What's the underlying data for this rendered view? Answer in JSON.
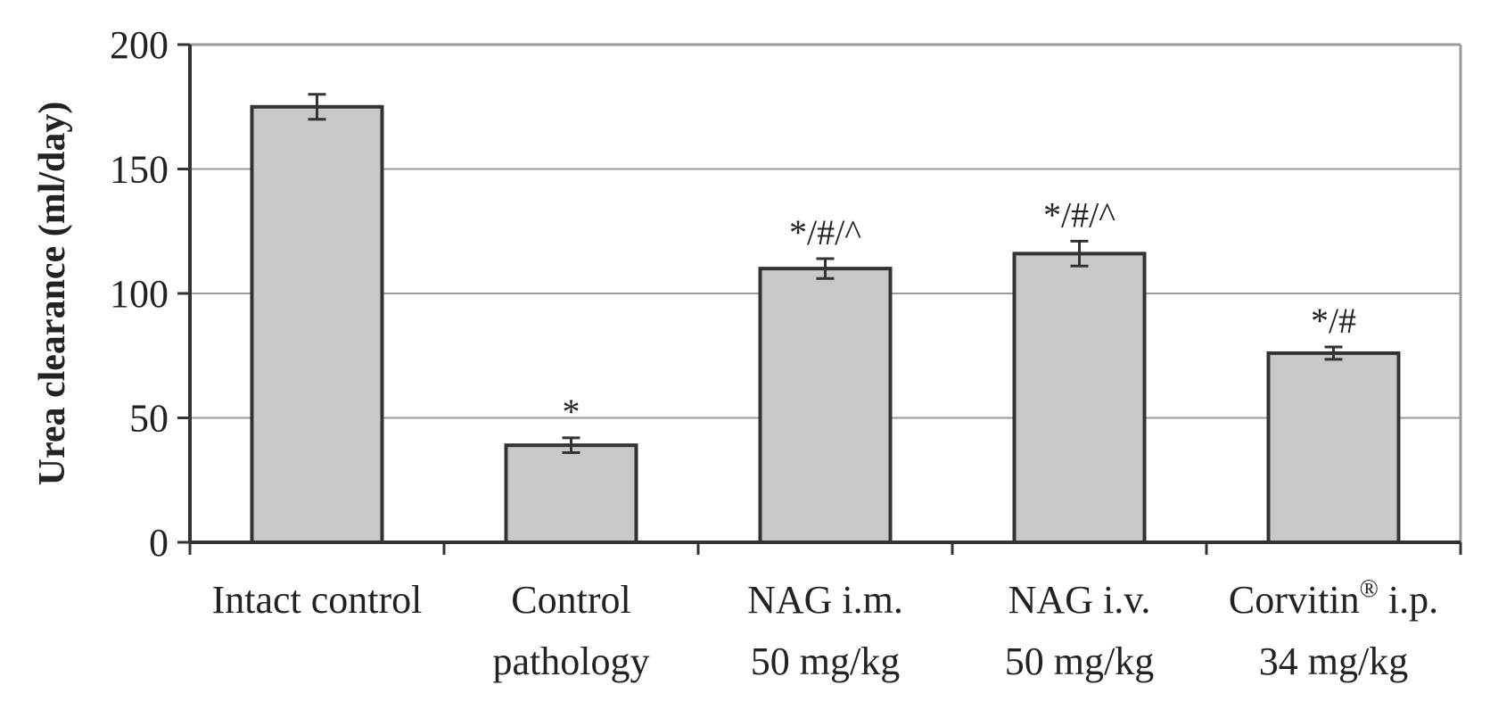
{
  "chart_data": {
    "type": "bar",
    "ylabel": "Urea clearance (ml/day)",
    "ylim": [
      0,
      200
    ],
    "yticks": [
      "0",
      "50",
      "100",
      "150",
      "200"
    ],
    "grid": true,
    "categories": [
      {
        "lines": [
          "Intact control"
        ],
        "sup": "",
        "line1_suffix": ""
      },
      {
        "lines": [
          "Control",
          "pathology"
        ],
        "sup": "",
        "line1_suffix": ""
      },
      {
        "lines": [
          "NAG i.m.",
          "50 mg/kg"
        ],
        "sup": "",
        "line1_suffix": ""
      },
      {
        "lines": [
          "NAG i.v.",
          "50 mg/kg"
        ],
        "sup": "",
        "line1_suffix": ""
      },
      {
        "lines": [
          "Corvitin",
          "34 mg/kg"
        ],
        "sup": "®",
        "line1_suffix": " i.p."
      }
    ],
    "values": [
      175,
      39,
      110,
      116,
      76
    ],
    "errors": [
      5,
      3,
      4,
      5,
      2.5
    ],
    "annotations": [
      "",
      "*",
      "*/#/^",
      "*/#/^",
      "*/#"
    ],
    "colors": {
      "bar_fill": "#c8c8c8",
      "bar_stroke": "#333333",
      "axis": "#333333",
      "grid": "#9a9a9a",
      "frame": "#9a9a9a"
    }
  }
}
